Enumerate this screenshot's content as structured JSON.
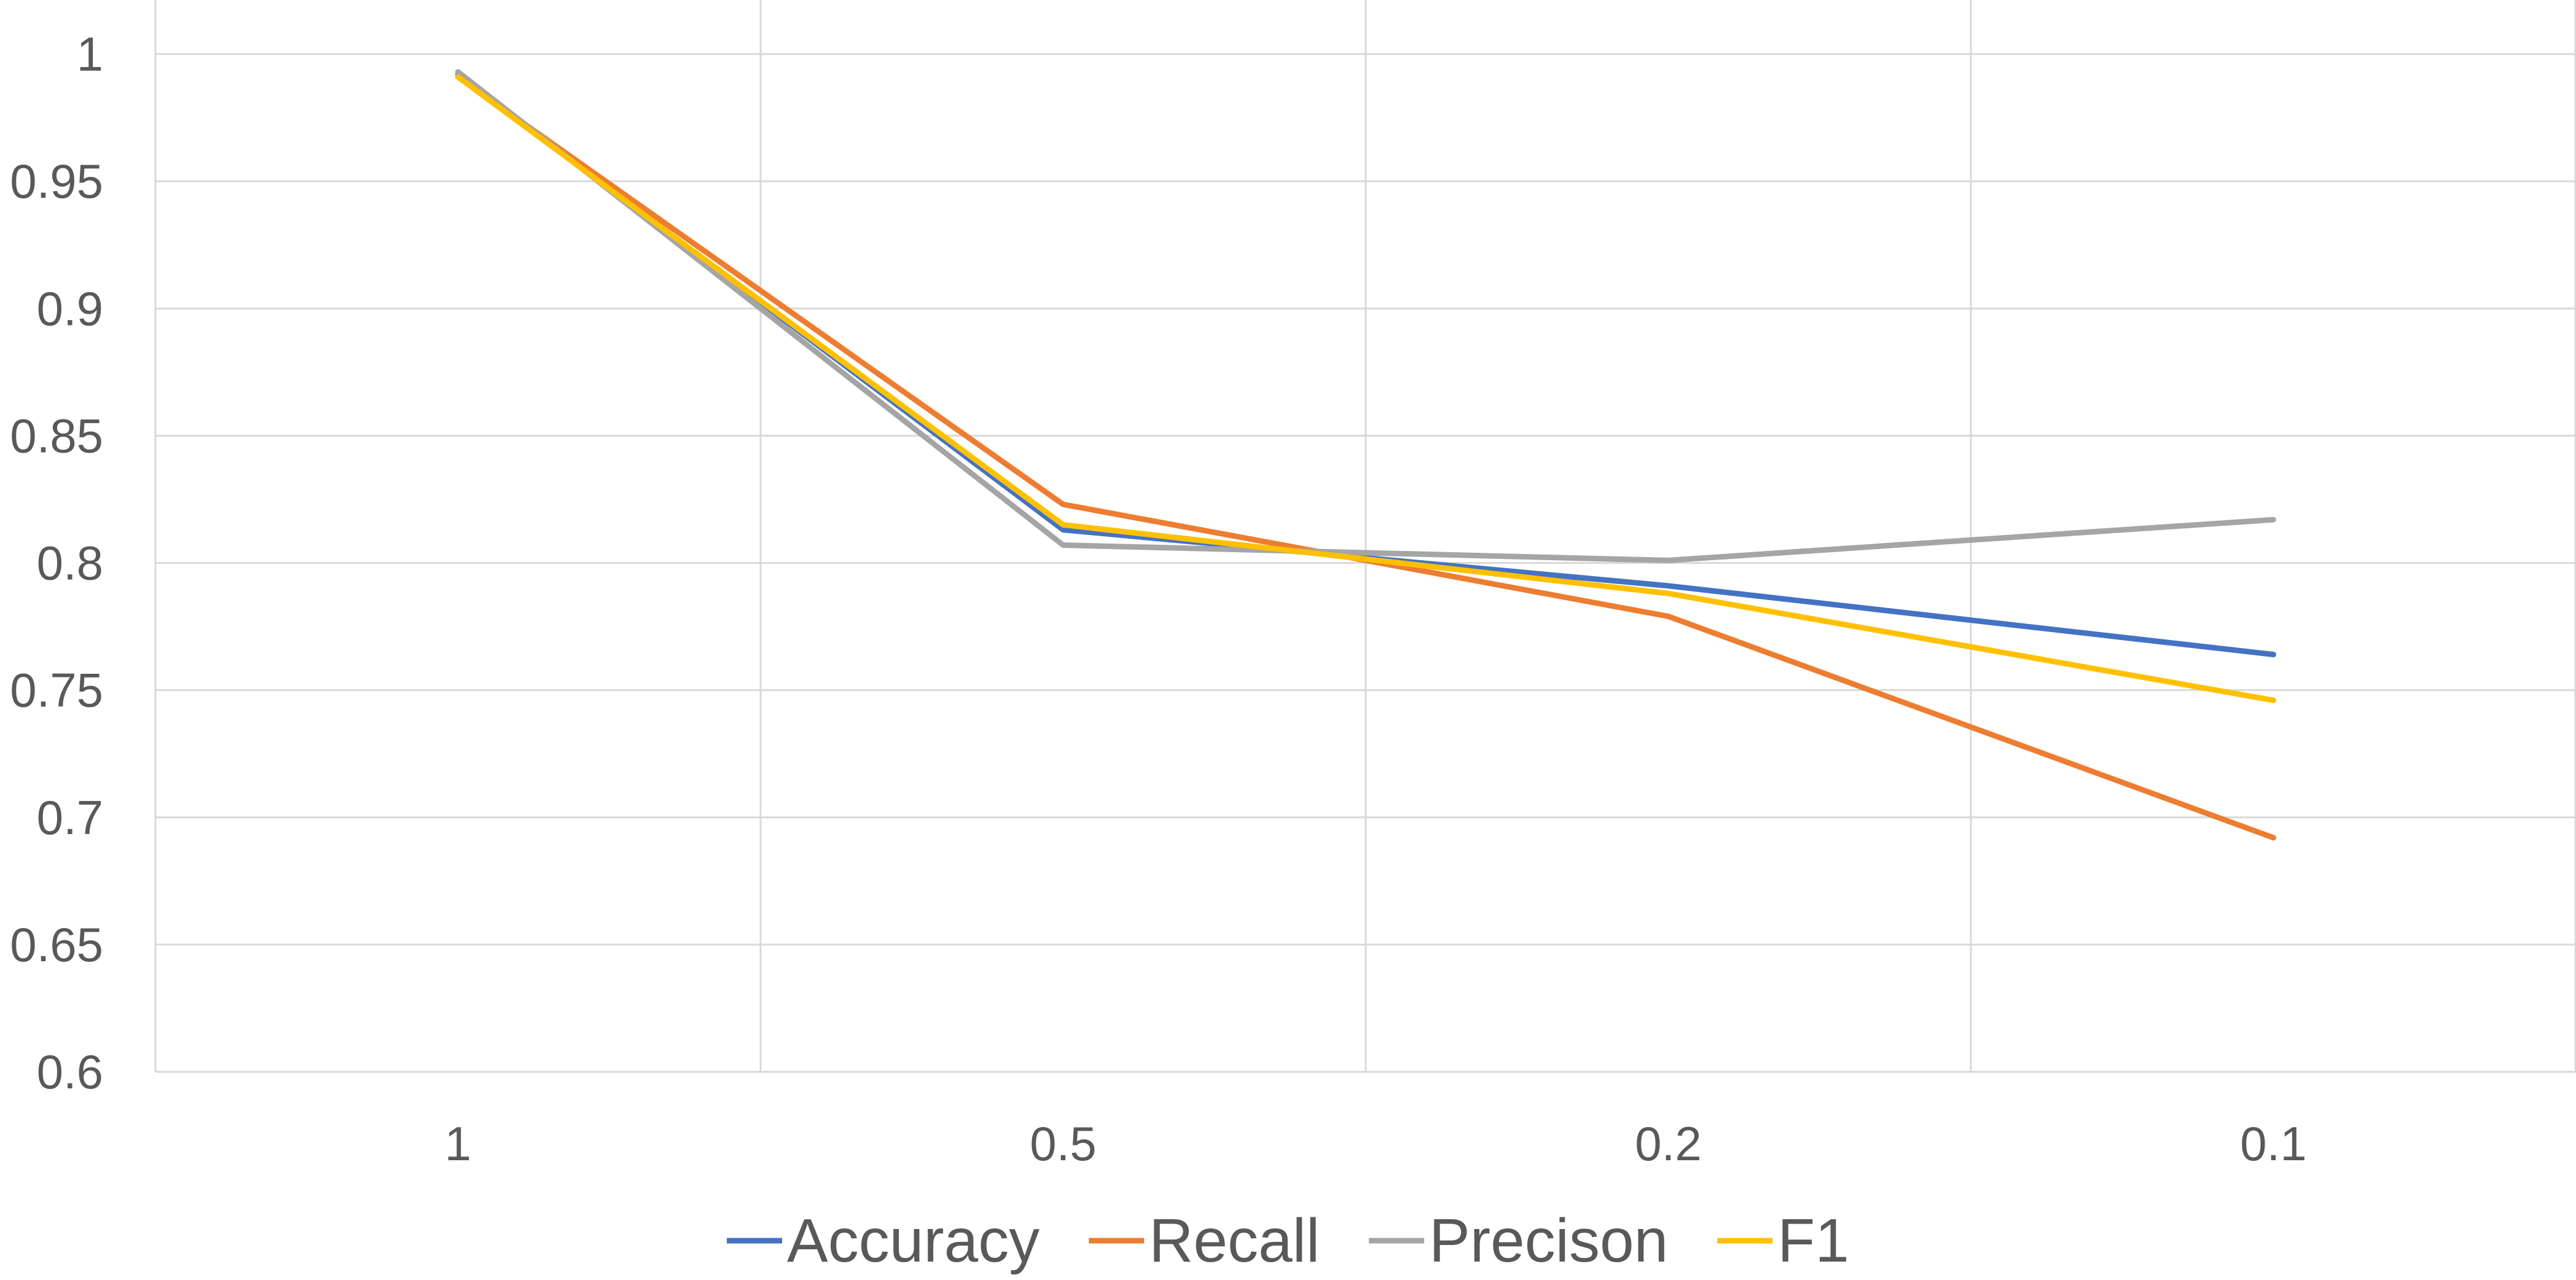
{
  "chart_data": {
    "type": "line",
    "title": "",
    "xlabel": "",
    "ylabel": "",
    "categories": [
      "1",
      "0.5",
      "0.2",
      "0.1"
    ],
    "ylim": [
      0.6,
      1
    ],
    "y_ticks": [
      "0.6",
      "0.65",
      "0.7",
      "0.75",
      "0.8",
      "0.85",
      "0.9",
      "0.95",
      "1"
    ],
    "grid": true,
    "legend": "bottom",
    "series": [
      {
        "name": "Accuracy",
        "color": "#4472C4",
        "values": [
          0.992,
          0.813,
          0.791,
          0.764
        ]
      },
      {
        "name": "Recall",
        "color": "#ED7D31",
        "values": [
          0.991,
          0.823,
          0.779,
          0.692
        ]
      },
      {
        "name": "Precison",
        "color": "#A5A5A5",
        "values": [
          0.993,
          0.807,
          0.801,
          0.817
        ]
      },
      {
        "name": "F1",
        "color": "#FFC000",
        "values": [
          0.991,
          0.815,
          0.788,
          0.746
        ]
      }
    ]
  }
}
